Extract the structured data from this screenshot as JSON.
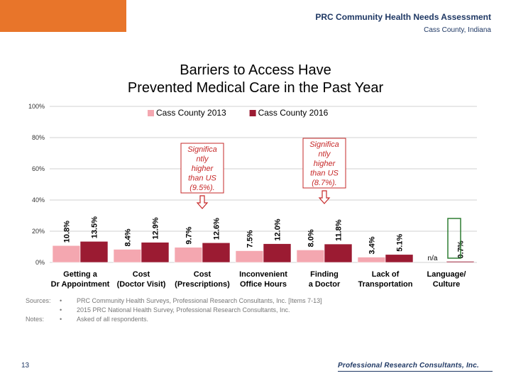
{
  "header": {
    "title": "PRC Community Health Needs Assessment",
    "subtitle": "Cass County, Indiana"
  },
  "slide": {
    "title_line1": "Barriers to Access Have",
    "title_line2": "Prevented Medical Care in the Past Year"
  },
  "chart_data": {
    "type": "bar",
    "title": "Barriers to Access Have Prevented Medical Care in the Past Year",
    "ylim": [
      0,
      100
    ],
    "yticks": [
      "0%",
      "20%",
      "40%",
      "60%",
      "80%",
      "100%"
    ],
    "ytick_values": [
      0,
      20,
      40,
      60,
      80,
      100
    ],
    "categories": [
      [
        "Getting a",
        "Dr Appointment"
      ],
      [
        "Cost",
        "(Doctor Visit)"
      ],
      [
        "Cost",
        "(Prescriptions)"
      ],
      [
        "Inconvenient",
        "Office Hours"
      ],
      [
        "Finding",
        "a Doctor"
      ],
      [
        "Lack of",
        "Transportation"
      ],
      [
        "Language/",
        "Culture"
      ]
    ],
    "series": [
      {
        "name": "Cass County 2013",
        "color": "#f4a7b0",
        "values": [
          10.8,
          8.4,
          9.7,
          7.5,
          8.0,
          3.4,
          null
        ],
        "labels": [
          "10.8%",
          "8.4%",
          "9.7%",
          "7.5%",
          "8.0%",
          "3.4%",
          "n/a"
        ]
      },
      {
        "name": "Cass County 2016",
        "color": "#9b1b32",
        "values": [
          13.5,
          12.9,
          12.6,
          12.0,
          11.8,
          5.1,
          0.7
        ],
        "labels": [
          "13.5%",
          "12.9%",
          "12.6%",
          "12.0%",
          "11.8%",
          "5.1%",
          "0.7%"
        ]
      }
    ],
    "annotations": [
      {
        "category_index": 2,
        "lines": [
          "Significa",
          "ntly",
          "higher",
          "than US",
          "(9.5%)."
        ]
      },
      {
        "category_index": 4,
        "lines": [
          "Significa",
          "ntly",
          "higher",
          "than US",
          "(8.7%)."
        ]
      }
    ]
  },
  "footer": {
    "sources_label": "Sources:",
    "notes_label": "Notes:",
    "bullet": "•",
    "source_lines": [
      "PRC Community Health Surveys, Professional Research Consultants, Inc. [Items 7-13]",
      "2015 PRC National Health Survey, Professional Research Consultants, Inc."
    ],
    "note_lines": [
      "Asked of all respondents."
    ],
    "page_number": "13",
    "logo_text": "Professional Research Consultants, Inc."
  },
  "colors": {
    "accent": "#e8752a",
    "navy": "#1f3864",
    "series_2013": "#f4a7b0",
    "series_2016": "#9b1b32"
  }
}
